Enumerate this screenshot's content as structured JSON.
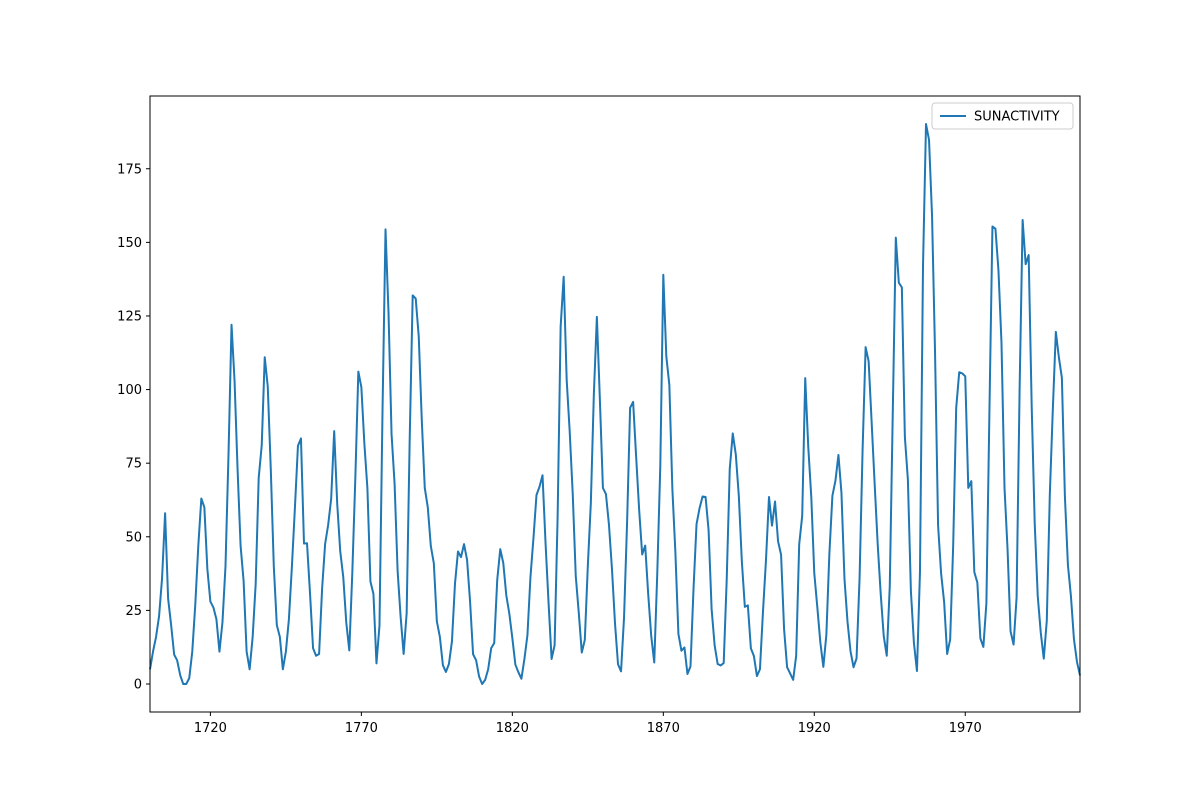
{
  "chart_data": {
    "type": "line",
    "x": [
      1700,
      1701,
      1702,
      1703,
      1704,
      1705,
      1706,
      1707,
      1708,
      1709,
      1710,
      1711,
      1712,
      1713,
      1714,
      1715,
      1716,
      1717,
      1718,
      1719,
      1720,
      1721,
      1722,
      1723,
      1724,
      1725,
      1726,
      1727,
      1728,
      1729,
      1730,
      1731,
      1732,
      1733,
      1734,
      1735,
      1736,
      1737,
      1738,
      1739,
      1740,
      1741,
      1742,
      1743,
      1744,
      1745,
      1746,
      1747,
      1748,
      1749,
      1750,
      1751,
      1752,
      1753,
      1754,
      1755,
      1756,
      1757,
      1758,
      1759,
      1760,
      1761,
      1762,
      1763,
      1764,
      1765,
      1766,
      1767,
      1768,
      1769,
      1770,
      1771,
      1772,
      1773,
      1774,
      1775,
      1776,
      1777,
      1778,
      1779,
      1780,
      1781,
      1782,
      1783,
      1784,
      1785,
      1786,
      1787,
      1788,
      1789,
      1790,
      1791,
      1792,
      1793,
      1794,
      1795,
      1796,
      1797,
      1798,
      1799,
      1800,
      1801,
      1802,
      1803,
      1804,
      1805,
      1806,
      1807,
      1808,
      1809,
      1810,
      1811,
      1812,
      1813,
      1814,
      1815,
      1816,
      1817,
      1818,
      1819,
      1820,
      1821,
      1822,
      1823,
      1824,
      1825,
      1826,
      1827,
      1828,
      1829,
      1830,
      1831,
      1832,
      1833,
      1834,
      1835,
      1836,
      1837,
      1838,
      1839,
      1840,
      1841,
      1842,
      1843,
      1844,
      1845,
      1846,
      1847,
      1848,
      1849,
      1850,
      1851,
      1852,
      1853,
      1854,
      1855,
      1856,
      1857,
      1858,
      1859,
      1860,
      1861,
      1862,
      1863,
      1864,
      1865,
      1866,
      1867,
      1868,
      1869,
      1870,
      1871,
      1872,
      1873,
      1874,
      1875,
      1876,
      1877,
      1878,
      1879,
      1880,
      1881,
      1882,
      1883,
      1884,
      1885,
      1886,
      1887,
      1888,
      1889,
      1890,
      1891,
      1892,
      1893,
      1894,
      1895,
      1896,
      1897,
      1898,
      1899,
      1900,
      1901,
      1902,
      1903,
      1904,
      1905,
      1906,
      1907,
      1908,
      1909,
      1910,
      1911,
      1912,
      1913,
      1914,
      1915,
      1916,
      1917,
      1918,
      1919,
      1920,
      1921,
      1922,
      1923,
      1924,
      1925,
      1926,
      1927,
      1928,
      1929,
      1930,
      1931,
      1932,
      1933,
      1934,
      1935,
      1936,
      1937,
      1938,
      1939,
      1940,
      1941,
      1942,
      1943,
      1944,
      1945,
      1946,
      1947,
      1948,
      1949,
      1950,
      1951,
      1952,
      1953,
      1954,
      1955,
      1956,
      1957,
      1958,
      1959,
      1960,
      1961,
      1962,
      1963,
      1964,
      1965,
      1966,
      1967,
      1968,
      1969,
      1970,
      1971,
      1972,
      1973,
      1974,
      1975,
      1976,
      1977,
      1978,
      1979,
      1980,
      1981,
      1982,
      1983,
      1984,
      1985,
      1986,
      1987,
      1988,
      1989,
      1990,
      1991,
      1992,
      1993,
      1994,
      1995,
      1996,
      1997,
      1998,
      1999,
      2000,
      2001,
      2002,
      2003,
      2004,
      2005,
      2006,
      2007,
      2008
    ],
    "series": [
      {
        "name": "SUNACTIVITY",
        "color": "#1f77b4",
        "values": [
          5.0,
          11.0,
          16.0,
          23.0,
          36.0,
          58.0,
          29.0,
          20.0,
          10.0,
          8.0,
          3.0,
          0.0,
          0.0,
          2.0,
          11.0,
          27.0,
          47.0,
          63.0,
          60.0,
          39.0,
          28.0,
          26.0,
          22.0,
          11.0,
          21.0,
          40.0,
          78.0,
          122.0,
          103.0,
          73.0,
          47.0,
          35.0,
          11.0,
          5.0,
          16.0,
          34.0,
          70.0,
          81.0,
          111.0,
          101.0,
          73.0,
          40.0,
          20.0,
          16.0,
          5.0,
          11.0,
          22.0,
          40.0,
          60.0,
          80.9,
          83.4,
          47.7,
          47.8,
          30.7,
          12.2,
          9.6,
          10.2,
          32.4,
          47.6,
          54.0,
          62.9,
          85.9,
          61.2,
          45.1,
          36.4,
          20.9,
          11.4,
          37.8,
          69.8,
          106.1,
          100.8,
          81.6,
          66.5,
          34.8,
          30.6,
          7.0,
          19.8,
          92.5,
          154.4,
          125.9,
          84.8,
          68.1,
          38.5,
          22.8,
          10.2,
          24.1,
          82.9,
          132.0,
          130.9,
          118.1,
          89.9,
          66.6,
          60.0,
          46.9,
          41.0,
          21.3,
          16.0,
          6.4,
          4.1,
          6.8,
          14.5,
          34.0,
          45.0,
          43.1,
          47.5,
          42.2,
          28.1,
          10.1,
          8.1,
          2.5,
          0.0,
          1.4,
          5.0,
          12.2,
          13.9,
          35.4,
          45.8,
          41.1,
          30.1,
          23.9,
          15.6,
          6.6,
          4.0,
          1.8,
          8.5,
          16.6,
          36.3,
          49.6,
          64.2,
          67.0,
          70.9,
          47.8,
          27.5,
          8.5,
          13.2,
          56.9,
          121.5,
          138.3,
          103.2,
          85.7,
          64.6,
          36.7,
          24.2,
          10.7,
          15.0,
          40.1,
          61.5,
          98.5,
          124.7,
          96.3,
          66.6,
          64.5,
          54.1,
          39.0,
          20.6,
          6.7,
          4.3,
          22.7,
          54.8,
          93.8,
          95.8,
          77.2,
          59.1,
          44.0,
          47.0,
          30.5,
          16.3,
          7.3,
          37.6,
          74.0,
          139.0,
          111.2,
          101.6,
          66.2,
          44.7,
          17.0,
          11.3,
          12.4,
          3.4,
          6.0,
          32.3,
          54.3,
          59.7,
          63.7,
          63.5,
          52.2,
          25.4,
          13.1,
          6.8,
          6.3,
          7.1,
          35.6,
          73.0,
          85.1,
          78.0,
          64.0,
          41.8,
          26.2,
          26.7,
          12.1,
          9.5,
          2.7,
          5.0,
          24.4,
          42.0,
          63.5,
          53.8,
          62.0,
          48.5,
          43.9,
          18.6,
          5.7,
          3.6,
          1.4,
          9.6,
          47.4,
          57.1,
          103.9,
          80.6,
          63.6,
          37.6,
          26.1,
          14.2,
          5.8,
          16.7,
          44.3,
          63.9,
          69.0,
          77.8,
          64.9,
          35.7,
          21.2,
          11.1,
          5.7,
          8.7,
          36.1,
          79.7,
          114.4,
          109.6,
          88.8,
          67.8,
          47.5,
          30.6,
          16.3,
          9.6,
          33.2,
          92.6,
          151.6,
          136.3,
          134.7,
          83.9,
          69.4,
          31.5,
          13.9,
          4.4,
          38.0,
          141.7,
          190.2,
          184.8,
          159.0,
          112.3,
          53.9,
          37.6,
          27.9,
          10.2,
          15.1,
          47.0,
          93.8,
          105.9,
          105.5,
          104.5,
          66.6,
          68.9,
          38.0,
          34.5,
          15.5,
          12.6,
          27.5,
          92.5,
          155.4,
          154.6,
          140.4,
          115.9,
          66.6,
          45.9,
          17.9,
          13.4,
          29.4,
          100.2,
          157.6,
          142.6,
          145.7,
          94.3,
          54.6,
          29.9,
          17.5,
          8.6,
          21.5,
          64.3,
          93.3,
          119.6,
          111.0,
          104.0,
          63.7,
          40.4,
          29.8,
          15.2,
          7.5,
          2.9
        ]
      }
    ],
    "xlim": [
      1700,
      2008
    ],
    "xticks": [
      1720,
      1770,
      1820,
      1870,
      1920,
      1970
    ],
    "ylim": [
      -9.51,
      199.71
    ],
    "yticks": [
      0,
      25,
      50,
      75,
      100,
      125,
      150,
      175
    ],
    "legend": "upper right"
  }
}
